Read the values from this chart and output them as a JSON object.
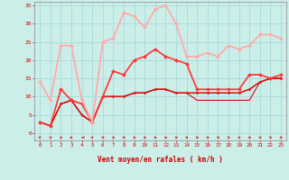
{
  "bg_color": "#cceee8",
  "grid_color": "#aadddd",
  "xlabel": "Vent moyen/en rafales ( km/h )",
  "xlim": [
    -0.5,
    23.5
  ],
  "ylim": [
    -2,
    36
  ],
  "yticks": [
    0,
    5,
    10,
    15,
    20,
    25,
    30,
    35
  ],
  "xticks": [
    0,
    1,
    2,
    3,
    4,
    5,
    6,
    7,
    8,
    9,
    10,
    11,
    12,
    13,
    14,
    15,
    16,
    17,
    18,
    19,
    20,
    21,
    22,
    23
  ],
  "series": [
    {
      "x": [
        0,
        1,
        2,
        3,
        4,
        5,
        6,
        7,
        8,
        9,
        10,
        11,
        12,
        13,
        14,
        15,
        16,
        17,
        18,
        19,
        20,
        21,
        22,
        23
      ],
      "y": [
        3,
        2,
        8,
        9,
        5,
        3,
        10,
        10,
        10,
        11,
        11,
        12,
        12,
        11,
        11,
        11,
        11,
        11,
        11,
        11,
        12,
        14,
        15,
        15
      ],
      "color": "#dd1111",
      "lw": 1.0,
      "marker": "D",
      "ms": 1.5
    },
    {
      "x": [
        0,
        1,
        2,
        3,
        4,
        5,
        6,
        7,
        8,
        9,
        10,
        11,
        12,
        13,
        14,
        15,
        16,
        17,
        18,
        19,
        20,
        21,
        22,
        23
      ],
      "y": [
        3,
        2,
        8,
        9,
        5,
        3,
        10,
        10,
        10,
        11,
        11,
        12,
        12,
        11,
        11,
        9,
        9,
        9,
        9,
        9,
        9,
        14,
        15,
        15
      ],
      "color": "#cc1111",
      "lw": 0.8,
      "marker": null
    },
    {
      "x": [
        0,
        1,
        2,
        3,
        4,
        5,
        6,
        7,
        8,
        9,
        10,
        11,
        12,
        13,
        14,
        15,
        16,
        17,
        18,
        19,
        20,
        21,
        22,
        23
      ],
      "y": [
        3,
        2,
        8,
        9,
        5,
        3,
        10,
        10,
        10,
        11,
        11,
        12,
        12,
        11,
        11,
        11,
        11,
        11,
        11,
        11,
        12,
        14,
        15,
        15
      ],
      "color": "#bb0000",
      "lw": 0.8,
      "marker": null
    },
    {
      "x": [
        0,
        1,
        2,
        3,
        4,
        5,
        6,
        7,
        8,
        9,
        10,
        11,
        12,
        13,
        14,
        15,
        16,
        17,
        18,
        19,
        20,
        21,
        22,
        23
      ],
      "y": [
        3,
        2,
        12,
        9,
        8,
        3,
        10,
        17,
        16,
        20,
        21,
        23,
        21,
        20,
        19,
        12,
        12,
        12,
        12,
        12,
        16,
        16,
        15,
        16
      ],
      "color": "#ff3333",
      "lw": 1.2,
      "marker": "D",
      "ms": 2.0
    },
    {
      "x": [
        0,
        1,
        2,
        3,
        4,
        5,
        6,
        7,
        8,
        9,
        10,
        11,
        12,
        13,
        14,
        15,
        16,
        17,
        18,
        19,
        20,
        21,
        22,
        23
      ],
      "y": [
        14,
        9,
        24,
        24,
        9,
        3,
        25,
        26,
        33,
        32,
        29,
        34,
        35,
        30,
        21,
        21,
        22,
        21,
        24,
        23,
        24,
        27,
        27,
        26
      ],
      "color": "#ffaaaa",
      "lw": 1.2,
      "marker": "D",
      "ms": 2.0
    },
    {
      "x": [
        0,
        1,
        2,
        3,
        4,
        5,
        6,
        7,
        8,
        9,
        10,
        11,
        12,
        13,
        14,
        15,
        16,
        17,
        18,
        19,
        20,
        21,
        22,
        23
      ],
      "y": [
        14,
        9,
        24,
        24,
        9,
        3,
        25,
        26,
        33,
        32,
        29,
        34,
        35,
        30,
        21,
        21,
        22,
        21,
        24,
        23,
        24,
        27,
        27,
        26
      ],
      "color": "#ffbbbb",
      "lw": 0.8,
      "marker": null
    },
    {
      "x": [
        0,
        1,
        2,
        3,
        4,
        5,
        6,
        7,
        8,
        9,
        10,
        11,
        12,
        13,
        14,
        15,
        16,
        17,
        18,
        19,
        20,
        21,
        22,
        23
      ],
      "y": [
        14,
        9,
        24,
        24,
        9,
        2,
        25,
        26,
        33,
        32,
        29,
        34,
        35,
        30,
        21,
        21,
        22,
        21,
        24,
        23,
        24,
        27,
        27,
        26
      ],
      "color": "#ffcccc",
      "lw": 0.8,
      "marker": null
    }
  ],
  "wind_dirs": [
    225,
    135,
    45,
    315,
    270,
    225,
    45,
    45,
    45,
    45,
    45,
    45,
    45,
    45,
    45,
    45,
    45,
    45,
    45,
    45,
    45,
    45,
    45,
    45
  ],
  "label_color": "#cc0000",
  "tick_color": "#cc0000"
}
